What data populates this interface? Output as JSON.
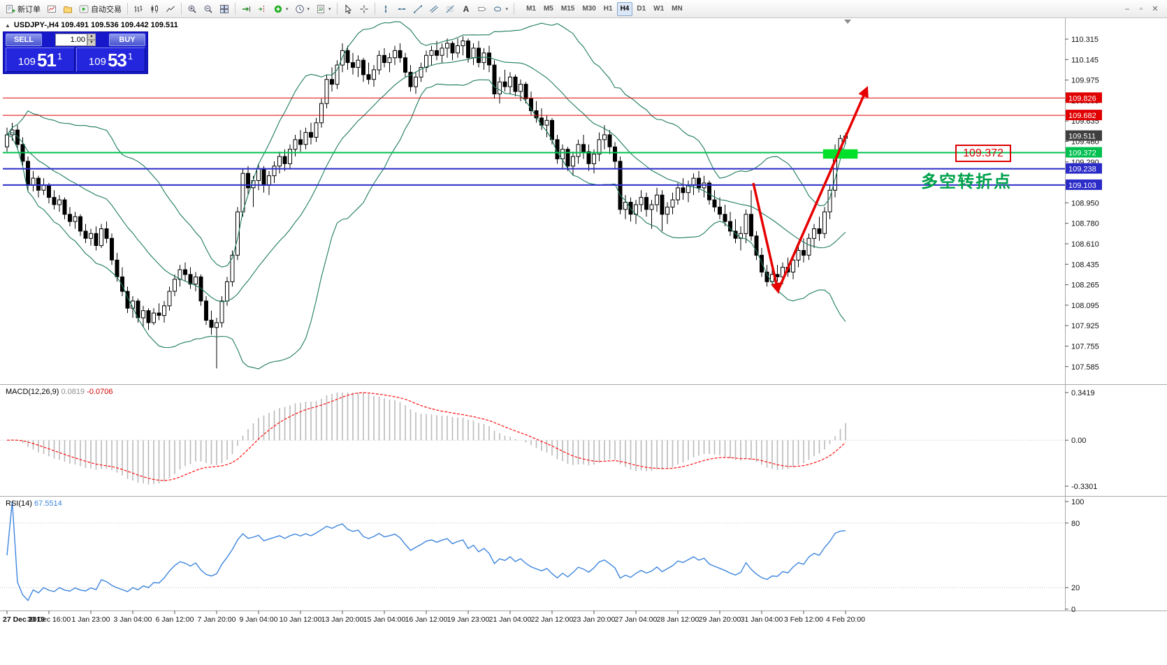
{
  "toolbar": {
    "new_order_label": "新订单",
    "autotrading_label": "自动交易",
    "timeframes": [
      "M1",
      "M5",
      "M15",
      "M30",
      "H1",
      "H4",
      "D1",
      "W1",
      "MN"
    ],
    "active_timeframe": "H4"
  },
  "chart_header": {
    "symbol_text": "USDJPY-,H4  109.491 109.536 109.442 109.511"
  },
  "one_click": {
    "sell_label": "SELL",
    "buy_label": "BUY",
    "volume": "1.00",
    "sell_price": {
      "prefix": "109",
      "big": "51",
      "sup": "1"
    },
    "buy_price": {
      "prefix": "109",
      "big": "53",
      "sup": "1"
    }
  },
  "annotations": {
    "price_box_text": "109.372",
    "note_text": "多空转折点"
  },
  "chart_data": {
    "type": "candlestick",
    "symbol": "USDJPY-",
    "period": "H4",
    "ohlc": {
      "open": 109.491,
      "high": 109.536,
      "low": 109.442,
      "close": 109.511
    },
    "price_axis": [
      "110.315",
      "110.145",
      "109.975",
      "109.805",
      "109.635",
      "109.460",
      "109.290",
      "109.120",
      "108.950",
      "108.780",
      "108.610",
      "108.435",
      "108.265",
      "108.095",
      "107.925",
      "107.755",
      "107.585"
    ],
    "time_labels": [
      "27 Dec 2019",
      "30 Dec 16:00",
      "1 Jan 23:00",
      "3 Jan 04:00",
      "6 Jan 12:00",
      "7 Jan 20:00",
      "9 Jan 04:00",
      "10 Jan 12:00",
      "13 Jan 20:00",
      "15 Jan 04:00",
      "16 Jan 12:00",
      "19 Jan 23:00",
      "21 Jan 04:00",
      "22 Jan 12:00",
      "23 Jan 20:00",
      "27 Jan 04:00",
      "28 Jan 12:00",
      "29 Jan 20:00",
      "31 Jan 04:00",
      "3 Feb 12:00",
      "4 Feb 20:00"
    ],
    "hlines": [
      {
        "price": 109.826,
        "label": "109.826",
        "color": "#e00000",
        "width": 1
      },
      {
        "price": 109.682,
        "label": "109.682",
        "color": "#e00000",
        "width": 1
      },
      {
        "price": 109.372,
        "label": "109.372",
        "color": "#00c050",
        "width": 2
      },
      {
        "price": 109.238,
        "label": "109.238",
        "color": "#2b2bc8",
        "width": 2
      },
      {
        "price": 109.103,
        "label": "109.103",
        "color": "#2b2bc8",
        "width": 2
      }
    ],
    "current_price": {
      "value": 109.511,
      "label": "109.511",
      "color": "#3f3f3f"
    },
    "bollinger": {
      "period": 20,
      "deviation": 2,
      "color": "#1d7a5f"
    },
    "green_zone": {
      "bar_start": 155.7,
      "bar_end": 162.3,
      "price_top": 109.4,
      "price_bottom": 109.322,
      "color": "#00e02a"
    },
    "arrow_style": {
      "color": "#e60000",
      "width": 3.5
    },
    "arrows": [
      {
        "points": [
          [
            142.4,
            109.12
          ],
          [
            147.1,
            108.225
          ]
        ]
      },
      {
        "points": [
          [
            147.1,
            108.225
          ],
          [
            164.0,
            109.9
          ]
        ]
      }
    ],
    "macd": {
      "name": "MACD(12,26,9)",
      "value_main": "0.0819",
      "value_signal": "-0.0706",
      "fast": 12,
      "slow": 26,
      "signal": 9,
      "axis_labels": [
        "0.3419",
        "0.00",
        "-0.3301"
      ],
      "max": 0.3419,
      "min": -0.3301
    },
    "rsi": {
      "name": "RSI(14)",
      "value": "67.5514",
      "period": 14,
      "axis_labels": [
        "100",
        "80",
        "20",
        "0"
      ],
      "axis_values": [
        100,
        80,
        20,
        0
      ],
      "levels": [
        80,
        20
      ]
    },
    "candles": [
      [
        109.42,
        109.58,
        109.38,
        109.52
      ],
      [
        109.52,
        109.62,
        109.47,
        109.56
      ],
      [
        109.56,
        109.6,
        109.4,
        109.44
      ],
      [
        109.44,
        109.5,
        109.26,
        109.3
      ],
      [
        109.3,
        109.34,
        109.05,
        109.1
      ],
      [
        109.1,
        109.22,
        109.05,
        109.16
      ],
      [
        109.16,
        109.18,
        109.0,
        109.06
      ],
      [
        109.06,
        109.16,
        109.02,
        109.1
      ],
      [
        109.1,
        109.12,
        108.95,
        109.0
      ],
      [
        109.0,
        109.06,
        108.9,
        108.94
      ],
      [
        108.94,
        109.02,
        108.88,
        108.98
      ],
      [
        108.98,
        109.0,
        108.82,
        108.86
      ],
      [
        108.86,
        108.92,
        108.76,
        108.8
      ],
      [
        108.8,
        108.88,
        108.74,
        108.84
      ],
      [
        108.84,
        108.86,
        108.68,
        108.72
      ],
      [
        108.72,
        108.78,
        108.62,
        108.66
      ],
      [
        108.66,
        108.74,
        108.6,
        108.7
      ],
      [
        108.7,
        108.76,
        108.56,
        108.6
      ],
      [
        108.6,
        108.78,
        108.58,
        108.74
      ],
      [
        108.74,
        108.8,
        108.62,
        108.66
      ],
      [
        108.66,
        108.7,
        108.44,
        108.48
      ],
      [
        108.48,
        108.54,
        108.3,
        108.34
      ],
      [
        108.34,
        108.42,
        108.18,
        108.22
      ],
      [
        108.22,
        108.26,
        108.04,
        108.08
      ],
      [
        108.08,
        108.18,
        108.0,
        108.14
      ],
      [
        108.14,
        108.16,
        107.96,
        108.0
      ],
      [
        108.0,
        108.1,
        107.92,
        108.06
      ],
      [
        108.06,
        108.08,
        107.9,
        107.96
      ],
      [
        107.96,
        108.08,
        107.94,
        108.04
      ],
      [
        108.04,
        108.12,
        107.98,
        108.02
      ],
      [
        108.02,
        108.14,
        107.96,
        108.1
      ],
      [
        108.1,
        108.26,
        108.06,
        108.22
      ],
      [
        108.22,
        108.36,
        108.18,
        108.32
      ],
      [
        108.32,
        108.44,
        108.26,
        108.4
      ],
      [
        108.4,
        108.46,
        108.3,
        108.36
      ],
      [
        108.36,
        108.42,
        108.24,
        108.28
      ],
      [
        108.28,
        108.38,
        108.22,
        108.34
      ],
      [
        108.34,
        108.36,
        108.1,
        108.14
      ],
      [
        108.14,
        108.18,
        107.94,
        107.98
      ],
      [
        107.98,
        108.06,
        107.86,
        107.92
      ],
      [
        107.92,
        108.0,
        107.58,
        107.96
      ],
      [
        107.96,
        108.18,
        107.92,
        108.14
      ],
      [
        108.14,
        108.34,
        108.1,
        108.3
      ],
      [
        108.3,
        108.56,
        108.26,
        108.52
      ],
      [
        108.52,
        108.92,
        108.48,
        108.88
      ],
      [
        108.88,
        109.24,
        108.84,
        109.2
      ],
      [
        109.2,
        109.26,
        109.02,
        109.08
      ],
      [
        109.08,
        109.18,
        108.92,
        109.14
      ],
      [
        109.14,
        109.28,
        109.06,
        109.24
      ],
      [
        109.24,
        109.26,
        109.04,
        109.1
      ],
      [
        109.1,
        109.22,
        109.02,
        109.18
      ],
      [
        109.18,
        109.3,
        109.12,
        109.26
      ],
      [
        109.26,
        109.38,
        109.2,
        109.34
      ],
      [
        109.34,
        109.4,
        109.22,
        109.28
      ],
      [
        109.28,
        109.44,
        109.24,
        109.4
      ],
      [
        109.4,
        109.52,
        109.34,
        109.48
      ],
      [
        109.48,
        109.56,
        109.38,
        109.44
      ],
      [
        109.44,
        109.58,
        109.4,
        109.54
      ],
      [
        109.54,
        109.62,
        109.44,
        109.5
      ],
      [
        109.5,
        109.66,
        109.46,
        109.62
      ],
      [
        109.62,
        109.82,
        109.58,
        109.78
      ],
      [
        109.78,
        110.02,
        109.74,
        109.98
      ],
      [
        109.98,
        110.08,
        109.88,
        109.94
      ],
      [
        109.94,
        110.14,
        109.9,
        110.1
      ],
      [
        110.1,
        110.28,
        110.04,
        110.22
      ],
      [
        110.22,
        110.26,
        110.06,
        110.12
      ],
      [
        110.12,
        110.2,
        110.02,
        110.08
      ],
      [
        110.08,
        110.18,
        110.0,
        110.14
      ],
      [
        110.14,
        110.16,
        109.96,
        110.02
      ],
      [
        110.02,
        110.12,
        109.94,
        109.98
      ],
      [
        109.98,
        110.1,
        109.92,
        110.06
      ],
      [
        110.06,
        110.22,
        110.02,
        110.18
      ],
      [
        110.18,
        110.24,
        110.08,
        110.12
      ],
      [
        110.12,
        110.2,
        110.04,
        110.16
      ],
      [
        110.16,
        110.26,
        110.1,
        110.22
      ],
      [
        110.22,
        110.28,
        110.12,
        110.16
      ],
      [
        110.16,
        110.2,
        110.0,
        110.04
      ],
      [
        110.04,
        110.1,
        109.88,
        109.92
      ],
      [
        109.92,
        110.04,
        109.86,
        110.0
      ],
      [
        110.0,
        110.12,
        109.96,
        110.08
      ],
      [
        110.08,
        110.22,
        110.04,
        110.18
      ],
      [
        110.18,
        110.26,
        110.1,
        110.22
      ],
      [
        110.22,
        110.3,
        110.14,
        110.18
      ],
      [
        110.18,
        110.28,
        110.12,
        110.24
      ],
      [
        110.24,
        110.32,
        110.16,
        110.28
      ],
      [
        110.28,
        110.3,
        110.14,
        110.2
      ],
      [
        110.2,
        110.32,
        110.16,
        110.26
      ],
      [
        110.26,
        110.34,
        110.18,
        110.3
      ],
      [
        110.3,
        110.32,
        110.12,
        110.16
      ],
      [
        110.16,
        110.28,
        110.1,
        110.24
      ],
      [
        110.24,
        110.3,
        110.08,
        110.12
      ],
      [
        110.12,
        110.24,
        110.06,
        110.2
      ],
      [
        110.2,
        110.26,
        110.04,
        110.1
      ],
      [
        110.1,
        110.14,
        109.82,
        109.86
      ],
      [
        109.86,
        110.0,
        109.78,
        109.96
      ],
      [
        109.96,
        110.06,
        109.88,
        109.92
      ],
      [
        109.92,
        110.04,
        109.86,
        110.0
      ],
      [
        110.0,
        110.02,
        109.84,
        109.88
      ],
      [
        109.88,
        109.98,
        109.8,
        109.94
      ],
      [
        109.94,
        109.96,
        109.78,
        109.82
      ],
      [
        109.82,
        109.88,
        109.68,
        109.72
      ],
      [
        109.72,
        109.8,
        109.62,
        109.66
      ],
      [
        109.66,
        109.74,
        109.56,
        109.6
      ],
      [
        109.6,
        109.68,
        109.5,
        109.64
      ],
      [
        109.64,
        109.66,
        109.44,
        109.48
      ],
      [
        109.48,
        109.52,
        109.28,
        109.32
      ],
      [
        109.32,
        109.44,
        109.24,
        109.4
      ],
      [
        109.4,
        109.42,
        109.22,
        109.26
      ],
      [
        109.26,
        109.38,
        109.18,
        109.34
      ],
      [
        109.34,
        109.48,
        109.28,
        109.44
      ],
      [
        109.44,
        109.52,
        109.32,
        109.38
      ],
      [
        109.38,
        109.44,
        109.22,
        109.28
      ],
      [
        109.28,
        109.4,
        109.2,
        109.36
      ],
      [
        109.36,
        109.54,
        109.3,
        109.48
      ],
      [
        109.48,
        109.6,
        109.4,
        109.52
      ],
      [
        109.52,
        109.56,
        109.36,
        109.42
      ],
      [
        109.42,
        109.46,
        109.24,
        109.3
      ],
      [
        109.3,
        109.34,
        108.86,
        108.9
      ],
      [
        108.9,
        109.02,
        108.82,
        108.96
      ],
      [
        108.96,
        109.0,
        108.8,
        108.86
      ],
      [
        108.86,
        108.98,
        108.78,
        108.94
      ],
      [
        108.94,
        109.06,
        108.88,
        109.0
      ],
      [
        109.0,
        109.04,
        108.84,
        108.9
      ],
      [
        108.9,
        108.98,
        108.74,
        108.94
      ],
      [
        108.94,
        109.08,
        108.88,
        109.02
      ],
      [
        109.02,
        109.06,
        108.72,
        108.86
      ],
      [
        108.86,
        108.96,
        108.78,
        108.92
      ],
      [
        108.92,
        109.04,
        108.86,
        108.98
      ],
      [
        108.98,
        109.12,
        108.94,
        109.08
      ],
      [
        109.08,
        109.16,
        108.98,
        109.04
      ],
      [
        109.04,
        109.14,
        108.96,
        109.1
      ],
      [
        109.1,
        109.2,
        109.02,
        109.16
      ],
      [
        109.16,
        109.22,
        109.04,
        109.08
      ],
      [
        109.08,
        109.18,
        109.0,
        109.12
      ],
      [
        109.12,
        109.14,
        108.94,
        108.98
      ],
      [
        108.98,
        109.06,
        108.88,
        108.92
      ],
      [
        108.92,
        109.0,
        108.82,
        108.86
      ],
      [
        108.86,
        108.94,
        108.76,
        108.8
      ],
      [
        108.8,
        108.88,
        108.68,
        108.72
      ],
      [
        108.72,
        108.82,
        108.62,
        108.66
      ],
      [
        108.66,
        108.76,
        108.56,
        108.7
      ],
      [
        108.7,
        108.9,
        108.62,
        108.86
      ],
      [
        108.86,
        109.06,
        108.64,
        108.68
      ],
      [
        108.68,
        108.72,
        108.48,
        108.52
      ],
      [
        108.52,
        108.58,
        108.34,
        108.38
      ],
      [
        108.38,
        108.44,
        108.26,
        108.3
      ],
      [
        108.3,
        108.42,
        108.28,
        108.36
      ],
      [
        108.36,
        108.44,
        108.3,
        108.34
      ],
      [
        108.34,
        108.46,
        108.28,
        108.42
      ],
      [
        108.42,
        108.5,
        108.34,
        108.38
      ],
      [
        108.38,
        108.52,
        108.32,
        108.48
      ],
      [
        108.48,
        108.6,
        108.42,
        108.56
      ],
      [
        108.56,
        108.66,
        108.46,
        108.52
      ],
      [
        108.52,
        108.7,
        108.48,
        108.66
      ],
      [
        108.66,
        108.78,
        108.58,
        108.74
      ],
      [
        108.74,
        108.84,
        108.64,
        108.7
      ],
      [
        108.7,
        108.92,
        108.66,
        108.88
      ],
      [
        108.88,
        109.1,
        108.82,
        109.06
      ],
      [
        109.06,
        109.44,
        109.0,
        109.38
      ],
      [
        109.38,
        109.52,
        109.34,
        109.49
      ],
      [
        109.491,
        109.536,
        109.442,
        109.511
      ]
    ]
  }
}
